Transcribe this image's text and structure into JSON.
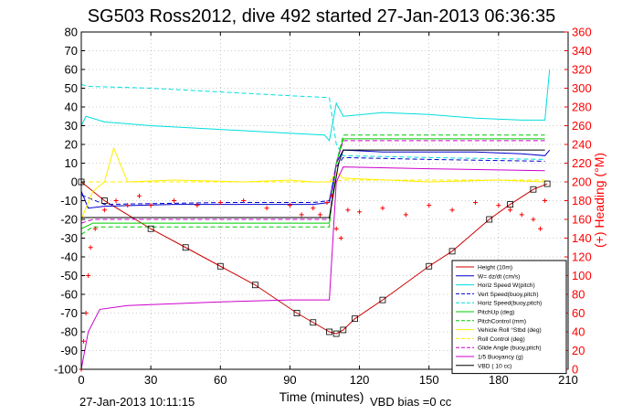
{
  "chart_data": {
    "type": "line",
    "title": "SG503 Ross2012, dive 492 started 27-Jan-2013 06:36:35",
    "xlabel": "Time (minutes)",
    "ylabel": "",
    "y2label": "(+) Heading (°M)",
    "xlim": [
      0,
      210
    ],
    "ylim": [
      -100,
      80
    ],
    "y2lim": [
      0,
      360
    ],
    "x_ticks": [
      0,
      30,
      60,
      90,
      120,
      150,
      180,
      210
    ],
    "y_ticks": [
      -100,
      -90,
      -80,
      -70,
      -60,
      -50,
      -40,
      -30,
      -20,
      -10,
      0,
      10,
      20,
      30,
      40,
      50,
      60,
      70,
      80
    ],
    "y2_ticks": [
      0,
      20,
      40,
      60,
      80,
      100,
      120,
      140,
      160,
      180,
      200,
      220,
      240,
      260,
      280,
      300,
      320,
      340,
      360
    ],
    "grid": true,
    "legend_position": "lower-right",
    "footer_left": "27-Jan-2013 10:11:15",
    "footer_right": "VBD bias =0 cc",
    "colors": {
      "axis": "#000000",
      "right_axis": "#ff0000",
      "grid": "#9a9a9a"
    },
    "series": [
      {
        "name": "Height (10m)",
        "color": "#cc0000",
        "style": "solid",
        "marker": "square",
        "x": [
          0,
          10,
          30,
          45,
          60,
          75,
          93,
          100,
          107,
          110,
          113,
          118,
          130,
          150,
          160,
          176,
          185,
          195,
          201
        ],
        "y": [
          0,
          -10,
          -25,
          -35,
          -45,
          -55,
          -70,
          -75,
          -80,
          -81,
          -79,
          -73,
          -63,
          -45,
          -37,
          -20,
          -12,
          -4,
          -1
        ]
      },
      {
        "name": "W= dz/dt (cm/s)",
        "color": "#0000cc",
        "style": "solid",
        "x": [
          0,
          3,
          10,
          40,
          70,
          100,
          107,
          110,
          113,
          130,
          150,
          170,
          190,
          200,
          202
        ],
        "y": [
          -5,
          -14,
          -13,
          -12,
          -12,
          -12,
          -11,
          10,
          17,
          16,
          16,
          16,
          15,
          14,
          17
        ]
      },
      {
        "name": "Horiz Speed W(pitch)",
        "color": "#00dddd",
        "style": "solid",
        "x": [
          0,
          2,
          10,
          30,
          60,
          90,
          105,
          107,
          110,
          113,
          130,
          150,
          170,
          190,
          200,
          202
        ],
        "y": [
          30,
          35,
          32,
          30,
          28,
          26,
          25,
          22,
          42,
          35,
          37,
          36,
          34,
          33,
          33,
          60
        ]
      },
      {
        "name": "Vert Speed(buoy,pitch)",
        "color": "#0000cc",
        "style": "dash",
        "x": [
          0,
          10,
          60,
          100,
          107,
          110,
          113,
          150,
          200
        ],
        "y": [
          -7,
          -12,
          -11,
          -11,
          -10,
          8,
          13,
          12,
          11
        ]
      },
      {
        "name": "Horiz Speed(buoy,pitch)",
        "color": "#00dddd",
        "style": "dash",
        "x": [
          0,
          3,
          30,
          60,
          90,
          107,
          110,
          113,
          150,
          200
        ],
        "y": [
          52,
          51,
          50,
          48,
          46,
          45,
          20,
          14,
          13,
          12
        ]
      },
      {
        "name": "PitchUp (deg)",
        "color": "#00cc00",
        "style": "solid",
        "x": [
          0,
          5,
          60,
          107,
          110,
          113,
          200
        ],
        "y": [
          -25,
          -22,
          -22,
          -22,
          10,
          23,
          23
        ]
      },
      {
        "name": "PitchControl (mm)",
        "color": "#00cc00",
        "style": "dash",
        "x": [
          0,
          5,
          60,
          107,
          110,
          113,
          200
        ],
        "y": [
          -28,
          -24,
          -24,
          -24,
          10,
          25,
          25
        ]
      },
      {
        "name": "Vehicle Roll °Stbd (deg)",
        "color": "#ffee00",
        "style": "solid",
        "x": [
          0,
          5,
          10,
          14,
          20,
          40,
          70,
          90,
          100,
          107,
          110,
          113,
          150,
          180,
          200
        ],
        "y": [
          -20,
          -5,
          0,
          18,
          0,
          1,
          0,
          1,
          0,
          0,
          5,
          2,
          0,
          1,
          0
        ]
      },
      {
        "name": "Roll Control (deg)",
        "color": "#ffee00",
        "style": "dash",
        "x": [
          0,
          107,
          113,
          200
        ],
        "y": [
          0,
          0,
          1,
          1
        ]
      },
      {
        "name": "Glide Angle (buoy,pitch)",
        "color": "#cc00cc",
        "style": "dash",
        "x": [
          0,
          5,
          60,
          107,
          110,
          113,
          200
        ],
        "y": [
          -22,
          -20,
          -20,
          -20,
          10,
          22,
          22
        ]
      },
      {
        "name": "1/5 Buoyancy (g)",
        "color": "#cc00cc",
        "style": "solid",
        "x": [
          0,
          3,
          8,
          20,
          60,
          90,
          107,
          110,
          113,
          150,
          200
        ],
        "y": [
          -100,
          -80,
          -68,
          -66,
          -64,
          -63,
          -63,
          0,
          8,
          7,
          6
        ]
      },
      {
        "name": "VBD ( 10 cc)",
        "color": "#000000",
        "style": "solid",
        "x": [
          0,
          107,
          111,
          113,
          200
        ],
        "y": [
          -19,
          -19,
          10,
          17,
          17
        ]
      }
    ],
    "heading_series": {
      "name": "(+) Heading",
      "color": "#ff0000",
      "marker": "plus",
      "x": [
        0,
        1,
        2,
        3,
        4,
        6,
        10,
        15,
        20,
        25,
        30,
        40,
        50,
        60,
        70,
        80,
        90,
        95,
        100,
        103,
        106,
        108,
        110,
        112,
        115,
        120,
        130,
        140,
        150,
        160,
        170,
        180,
        185,
        190,
        195,
        198,
        200
      ],
      "y": [
        0,
        30,
        60,
        100,
        130,
        150,
        170,
        180,
        175,
        185,
        175,
        180,
        175,
        178,
        180,
        172,
        175,
        165,
        172,
        165,
        178,
        185,
        150,
        140,
        170,
        168,
        172,
        165,
        175,
        170,
        178,
        175,
        170,
        165,
        160,
        150,
        180
      ]
    }
  }
}
